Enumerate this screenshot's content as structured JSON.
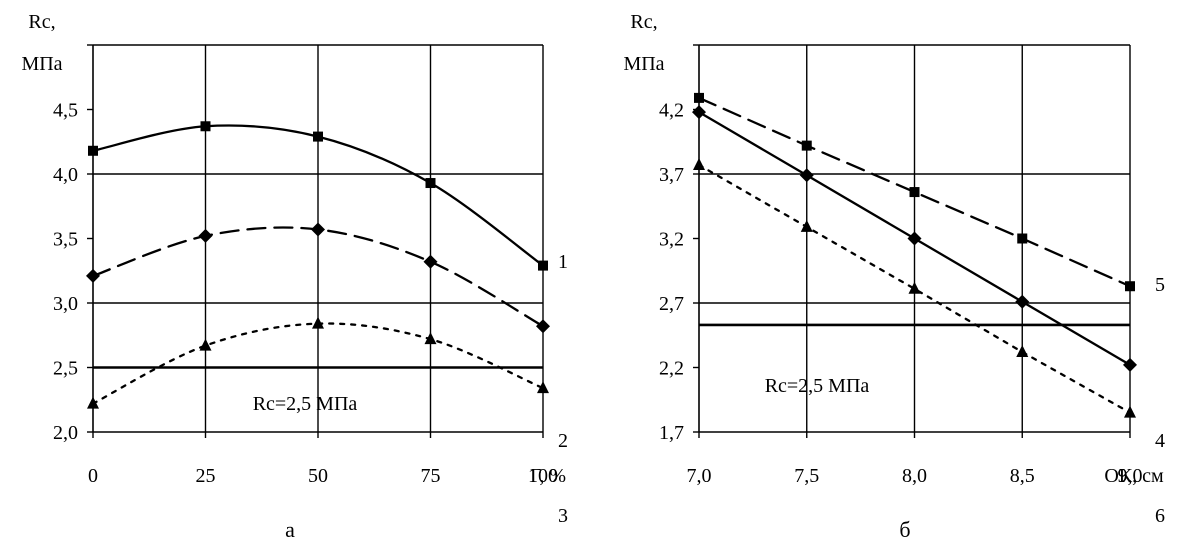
{
  "chart_data": [
    {
      "type": "line",
      "panel_label": "а",
      "ylabel_line1": "Rc,",
      "ylabel_line2": "МПа",
      "xlabel": "Г, %",
      "x_ticks": [
        "0",
        "25",
        "50",
        "75",
        "100"
      ],
      "y_ticks": [
        "2,0",
        "2,5",
        "3,0",
        "3,5",
        "4,0",
        "4,5"
      ],
      "xlim": [
        0,
        100
      ],
      "ylim": [
        2.0,
        5.0
      ],
      "x": [
        0,
        25,
        50,
        75,
        100
      ],
      "series": [
        {
          "name": "1",
          "values": [
            4.18,
            4.37,
            4.29,
            3.93,
            3.29
          ],
          "marker": "square",
          "dash": "solid"
        },
        {
          "name": "2",
          "values": [
            3.21,
            3.52,
            3.57,
            3.32,
            2.82
          ],
          "marker": "diamond",
          "dash": "dashed"
        },
        {
          "name": "3",
          "values": [
            2.22,
            2.67,
            2.84,
            2.72,
            2.34
          ],
          "marker": "triangle",
          "dash": "dotted"
        }
      ],
      "reference_line": {
        "value": 2.5,
        "label": "Rc=2,5 МПа"
      },
      "grid": "vertical and horizontal"
    },
    {
      "type": "line",
      "panel_label": "б",
      "ylabel_line1": "Rc,",
      "ylabel_line2": "МПа",
      "xlabel": "ОК, см",
      "x_ticks": [
        "7,0",
        "7,5",
        "8,0",
        "8,5",
        "9,0"
      ],
      "y_ticks": [
        "1,7",
        "2,2",
        "2,7",
        "3,2",
        "3,7",
        "4,2"
      ],
      "xlim": [
        7.0,
        9.0
      ],
      "ylim": [
        1.7,
        4.7
      ],
      "x": [
        7.0,
        7.5,
        8.0,
        8.5,
        9.0
      ],
      "series": [
        {
          "name": "5",
          "values": [
            4.29,
            3.92,
            3.56,
            3.2,
            2.83
          ],
          "marker": "square",
          "dash": "dashed"
        },
        {
          "name": "4",
          "values": [
            4.18,
            3.69,
            3.2,
            2.71,
            2.22
          ],
          "marker": "diamond",
          "dash": "solid"
        },
        {
          "name": "6",
          "values": [
            3.77,
            3.29,
            2.81,
            2.32,
            1.85
          ],
          "marker": "triangle",
          "dash": "dotted"
        }
      ],
      "reference_line": {
        "value": 2.53,
        "label": "Rc=2,5 МПа"
      },
      "grid": "vertical and horizontal"
    }
  ]
}
